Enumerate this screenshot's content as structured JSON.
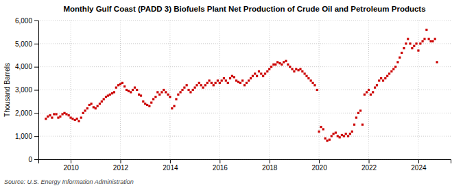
{
  "chart_data": {
    "type": "scatter",
    "title": "Monthly Gulf Coast (PADD 3) Biofuels Plant Net Production of Crude Oil and Petroleum Products",
    "ylabel": "Thousand Barrels",
    "source": "Source: U.S. Energy Information Administration",
    "color": "#CC0000",
    "marker": "square",
    "grid": true,
    "xlim": [
      2008.7,
      2025.3
    ],
    "ylim": [
      0,
      6000
    ],
    "xticks": [
      2010,
      2012,
      2014,
      2016,
      2018,
      2020,
      2022,
      2024
    ],
    "yticks": [
      0,
      {
        "value": 1000,
        "label": "1,000"
      },
      {
        "value": 2000,
        "label": "2,000"
      },
      {
        "value": 3000,
        "label": "3,000"
      },
      {
        "value": 4000,
        "label": "4,000"
      },
      {
        "value": 5000,
        "label": "5,000"
      },
      {
        "value": 6000,
        "label": "6,000"
      }
    ],
    "x": [
      2009.0,
      2009.08,
      2009.17,
      2009.25,
      2009.33,
      2009.42,
      2009.5,
      2009.58,
      2009.67,
      2009.75,
      2009.83,
      2009.92,
      2010.0,
      2010.08,
      2010.17,
      2010.25,
      2010.33,
      2010.42,
      2010.5,
      2010.58,
      2010.67,
      2010.75,
      2010.83,
      2010.92,
      2011.0,
      2011.08,
      2011.17,
      2011.25,
      2011.33,
      2011.42,
      2011.5,
      2011.58,
      2011.67,
      2011.75,
      2011.83,
      2011.92,
      2012.0,
      2012.08,
      2012.17,
      2012.25,
      2012.33,
      2012.42,
      2012.5,
      2012.58,
      2012.67,
      2012.75,
      2012.83,
      2012.92,
      2013.0,
      2013.08,
      2013.17,
      2013.25,
      2013.33,
      2013.42,
      2013.5,
      2013.58,
      2013.67,
      2013.75,
      2013.83,
      2013.92,
      2014.0,
      2014.08,
      2014.17,
      2014.25,
      2014.33,
      2014.42,
      2014.5,
      2014.58,
      2014.67,
      2014.75,
      2014.83,
      2014.92,
      2015.0,
      2015.08,
      2015.17,
      2015.25,
      2015.33,
      2015.42,
      2015.5,
      2015.58,
      2015.67,
      2015.75,
      2015.83,
      2015.92,
      2016.0,
      2016.08,
      2016.17,
      2016.25,
      2016.33,
      2016.42,
      2016.5,
      2016.58,
      2016.67,
      2016.75,
      2016.83,
      2016.92,
      2017.0,
      2017.08,
      2017.17,
      2017.25,
      2017.33,
      2017.42,
      2017.5,
      2017.58,
      2017.67,
      2017.75,
      2017.83,
      2017.92,
      2018.0,
      2018.08,
      2018.17,
      2018.25,
      2018.33,
      2018.42,
      2018.5,
      2018.58,
      2018.67,
      2018.75,
      2018.83,
      2018.92,
      2019.0,
      2019.08,
      2019.17,
      2019.25,
      2019.33,
      2019.42,
      2019.5,
      2019.58,
      2019.67,
      2019.75,
      2019.83,
      2019.92,
      2020.0,
      2020.08,
      2020.17,
      2020.25,
      2020.33,
      2020.42,
      2020.5,
      2020.58,
      2020.67,
      2020.75,
      2020.83,
      2020.92,
      2021.0,
      2021.08,
      2021.17,
      2021.25,
      2021.33,
      2021.42,
      2021.5,
      2021.58,
      2021.67,
      2021.75,
      2021.83,
      2021.92,
      2022.0,
      2022.08,
      2022.17,
      2022.25,
      2022.33,
      2022.42,
      2022.5,
      2022.58,
      2022.67,
      2022.75,
      2022.83,
      2022.92,
      2023.0,
      2023.08,
      2023.17,
      2023.25,
      2023.33,
      2023.42,
      2023.5,
      2023.58,
      2023.67,
      2023.75,
      2023.83,
      2023.92,
      2024.0,
      2024.08,
      2024.17,
      2024.25,
      2024.33,
      2024.42,
      2024.5,
      2024.58,
      2024.67,
      2024.75
    ],
    "values": [
      1750,
      1850,
      1900,
      1800,
      1950,
      1950,
      1800,
      1850,
      1950,
      2000,
      1950,
      1900,
      1800,
      1750,
      1700,
      1750,
      1650,
      1800,
      2000,
      2100,
      2200,
      2350,
      2400,
      2250,
      2200,
      2300,
      2400,
      2500,
      2600,
      2700,
      2750,
      2800,
      2850,
      2900,
      3100,
      3200,
      3250,
      3300,
      3150,
      3000,
      2950,
      2900,
      3000,
      3100,
      3000,
      2800,
      2750,
      2500,
      2400,
      2350,
      2300,
      2450,
      2600,
      2700,
      2900,
      2800,
      2900,
      3000,
      2900,
      2800,
      2700,
      2200,
      2300,
      2600,
      2800,
      2900,
      3000,
      3100,
      3200,
      3000,
      2900,
      3000,
      3100,
      3200,
      3300,
      3200,
      3100,
      3200,
      3300,
      3400,
      3300,
      3200,
      3300,
      3400,
      3300,
      3400,
      3500,
      3400,
      3300,
      3500,
      3600,
      3550,
      3400,
      3350,
      3300,
      3400,
      3200,
      3300,
      3400,
      3500,
      3600,
      3700,
      3600,
      3800,
      3700,
      3600,
      3700,
      3800,
      3900,
      4000,
      4100,
      4100,
      4200,
      4150,
      4100,
      4200,
      4250,
      4100,
      4000,
      3900,
      3800,
      3900,
      3850,
      3900,
      3800,
      3700,
      3600,
      3500,
      3400,
      3300,
      3200,
      3000,
      1200,
      1400,
      1300,
      900,
      800,
      850,
      1000,
      1100,
      1150,
      1000,
      950,
      1050,
      1000,
      1100,
      1000,
      1100,
      1200,
      1500,
      1800,
      2000,
      2100,
      1500,
      2800,
      2900,
      3000,
      2800,
      2900,
      3100,
      3200,
      3400,
      3500,
      3400,
      3500,
      3600,
      3700,
      3800,
      3900,
      4000,
      4200,
      4400,
      4600,
      4800,
      5000,
      5200,
      5000,
      4800,
      4900,
      5000,
      4700,
      5000,
      5100,
      5200,
      5600,
      5200,
      5100,
      5100,
      5200,
      4200
    ]
  }
}
